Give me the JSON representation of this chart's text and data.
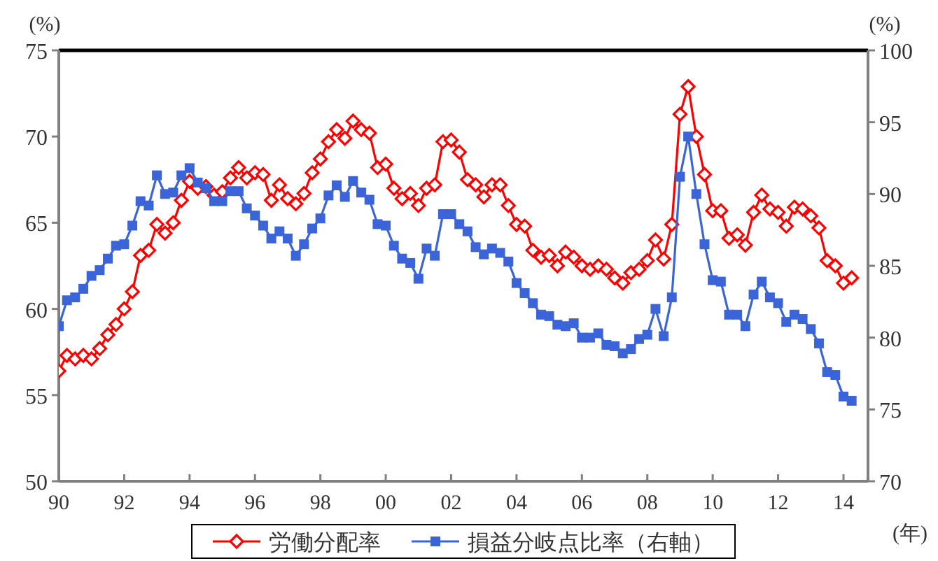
{
  "chart_data": {
    "type": "line",
    "xlabel": "(年)",
    "ylabel": "(%)",
    "y2label": "(%)",
    "x": [
      1990,
      1990.25,
      1990.5,
      1990.75,
      1991,
      1991.25,
      1991.5,
      1991.75,
      1992,
      1992.25,
      1992.5,
      1992.75,
      1993,
      1993.25,
      1993.5,
      1993.75,
      1994,
      1994.25,
      1994.5,
      1994.75,
      1995,
      1995.25,
      1995.5,
      1995.75,
      1996,
      1996.25,
      1996.5,
      1996.75,
      1997,
      1997.25,
      1997.5,
      1997.75,
      1998,
      1998.25,
      1998.5,
      1998.75,
      1999,
      1999.25,
      1999.5,
      1999.75,
      2000,
      2000.25,
      2000.5,
      2000.75,
      2001,
      2001.25,
      2001.5,
      2001.75,
      2002,
      2002.25,
      2002.5,
      2002.75,
      2003,
      2003.25,
      2003.5,
      2003.75,
      2004,
      2004.25,
      2004.5,
      2004.75,
      2005,
      2005.25,
      2005.5,
      2005.75,
      2006,
      2006.25,
      2006.5,
      2006.75,
      2007,
      2007.25,
      2007.5,
      2007.75,
      2008,
      2008.25,
      2008.5,
      2008.75,
      2009,
      2009.25,
      2009.5,
      2009.75,
      2010,
      2010.25,
      2010.5,
      2010.75,
      2011,
      2011.25,
      2011.5,
      2011.75,
      2012,
      2012.25,
      2012.5,
      2012.75,
      2013,
      2013.25,
      2013.5,
      2013.75,
      2014,
      2014.25
    ],
    "series": [
      {
        "name": "労働分配率",
        "color": "#ff0000",
        "marker": "diamond",
        "values": [
          56.4,
          57.3,
          57.1,
          57.3,
          57.1,
          57.7,
          58.5,
          59.1,
          60.0,
          61.0,
          63.1,
          63.4,
          64.9,
          64.4,
          65.0,
          66.3,
          67.4,
          67.0,
          67.1,
          66.6,
          66.8,
          67.6,
          68.2,
          67.6,
          67.9,
          67.8,
          66.3,
          67.2,
          66.4,
          66.1,
          66.7,
          67.9,
          68.7,
          69.7,
          70.4,
          69.9,
          70.9,
          70.4,
          70.2,
          68.2,
          68.4,
          67.0,
          66.4,
          66.7,
          66.0,
          67.0,
          67.2,
          69.7,
          69.8,
          69.1,
          67.5,
          67.2,
          66.5,
          67.2,
          67.2,
          66.0,
          64.9,
          64.8,
          63.4,
          63.0,
          63.1,
          62.5,
          63.3,
          63.0,
          62.5,
          62.3,
          62.5,
          62.3,
          61.8,
          61.5,
          62.1,
          62.3,
          62.8,
          64.0,
          62.9,
          64.9,
          71.3,
          72.9,
          70.0,
          67.8,
          65.7,
          65.7,
          64.1,
          64.3,
          63.7,
          65.6,
          66.6,
          65.8,
          65.6,
          64.8,
          65.9,
          65.8,
          65.4,
          64.7,
          62.8,
          62.5,
          61.5,
          61.8
        ]
      },
      {
        "name": "損益分岐点比率（右軸）",
        "color": "#3a64d8",
        "marker": "square",
        "axis": "y2",
        "values": [
          80.8,
          82.6,
          82.8,
          83.4,
          84.3,
          84.7,
          85.5,
          86.4,
          86.5,
          87.8,
          89.5,
          89.2,
          91.3,
          90.0,
          90.1,
          91.3,
          91.8,
          90.8,
          90.4,
          89.5,
          89.5,
          90.2,
          90.2,
          89.0,
          88.5,
          87.8,
          86.9,
          87.4,
          86.9,
          85.7,
          86.5,
          87.6,
          88.3,
          89.9,
          90.6,
          89.8,
          90.9,
          90.1,
          89.6,
          87.9,
          87.8,
          86.4,
          85.5,
          85.2,
          84.1,
          86.2,
          85.7,
          88.6,
          88.6,
          87.9,
          87.4,
          86.3,
          85.8,
          86.2,
          85.9,
          85.3,
          83.8,
          83.1,
          82.4,
          81.6,
          81.5,
          80.9,
          80.8,
          81.0,
          80.0,
          80.0,
          80.3,
          79.5,
          79.4,
          78.9,
          79.2,
          79.9,
          80.2,
          82.0,
          80.1,
          82.8,
          91.2,
          94.0,
          90.0,
          86.5,
          84.0,
          83.9,
          81.6,
          81.6,
          80.8,
          83.0,
          83.9,
          82.8,
          82.4,
          81.1,
          81.6,
          81.3,
          80.6,
          79.6,
          77.6,
          77.4,
          75.9,
          75.6
        ]
      }
    ],
    "xlim": [
      1990,
      2014.75
    ],
    "xticks": [
      {
        "value": 1990,
        "label": "90"
      },
      {
        "value": 1992,
        "label": "92"
      },
      {
        "value": 1994,
        "label": "94"
      },
      {
        "value": 1996,
        "label": "96"
      },
      {
        "value": 1998,
        "label": "98"
      },
      {
        "value": 2000,
        "label": "00"
      },
      {
        "value": 2002,
        "label": "02"
      },
      {
        "value": 2004,
        "label": "04"
      },
      {
        "value": 2006,
        "label": "06"
      },
      {
        "value": 2008,
        "label": "08"
      },
      {
        "value": 2010,
        "label": "10"
      },
      {
        "value": 2012,
        "label": "12"
      },
      {
        "value": 2014,
        "label": "14"
      }
    ],
    "ylim": [
      50,
      75
    ],
    "yticks": [
      50,
      55,
      60,
      65,
      70,
      75
    ],
    "y2lim": [
      70,
      100
    ],
    "y2ticks": [
      70,
      75,
      80,
      85,
      90,
      95,
      100
    ],
    "legend": "bottom"
  }
}
